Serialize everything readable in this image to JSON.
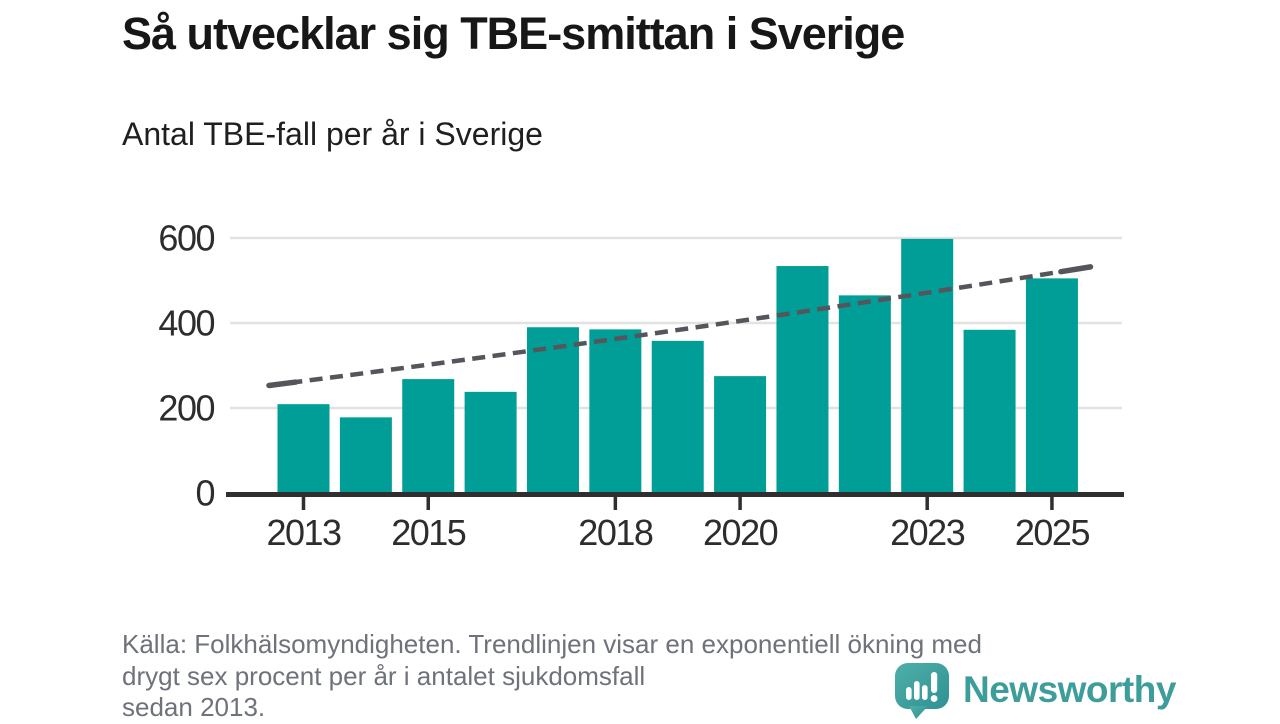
{
  "title": "Så utvecklar sig TBE-smittan i Sverige",
  "subtitle": "Antal TBE-fall per år i Sverige",
  "source_note_lines": [
    "Källa: Folkhälsomyndigheten. Trendlinjen visar en exponentiell ökning med",
    "drygt sex procent per år i antalet sjukdomsfall",
    "sedan 2013."
  ],
  "brand": {
    "name": "Newsworthy",
    "icon": "speech-bubble-bar-chart-icon",
    "wordmark_color": "#3d9d9b",
    "icon_color_top": "#4fafa9",
    "icon_color_bottom": "#2f9194"
  },
  "colors": {
    "bar": "#009e96",
    "trend": "#54565b",
    "grid": "#e2e2e2",
    "axis": "#2f2f2f",
    "tick_label": "#2d2d2d",
    "title_text": "#171717",
    "muted_text": "#6e727b"
  },
  "chart_data": {
    "type": "bar",
    "title": "Antal TBE-fall per år i Sverige",
    "categories": [
      2013,
      2014,
      2015,
      2016,
      2017,
      2018,
      2019,
      2020,
      2021,
      2022,
      2023,
      2024,
      2025
    ],
    "values": [
      209,
      178,
      268,
      238,
      390,
      385,
      358,
      275,
      534,
      465,
      598,
      384,
      505
    ],
    "x_tick_labels": [
      "2013",
      "2015",
      "2018",
      "2020",
      "2023",
      "2025"
    ],
    "y_ticks": [
      0,
      200,
      400,
      600
    ],
    "ylim": [
      0,
      630
    ],
    "grid": true,
    "legend": "none",
    "trendline": {
      "style": "dashed",
      "start_value": 253,
      "end_value": 532
    }
  }
}
